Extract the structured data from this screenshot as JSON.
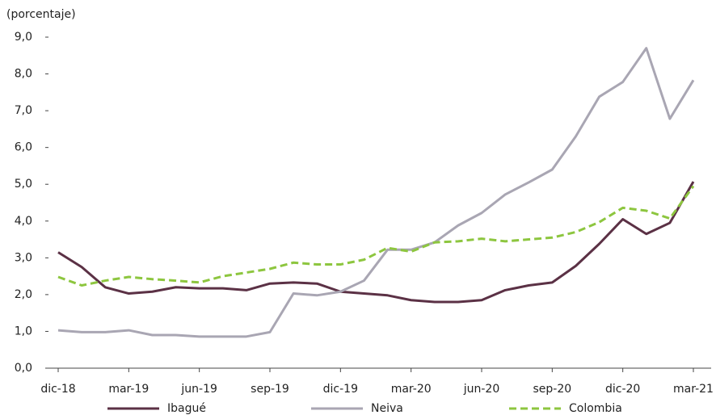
{
  "chart_data": {
    "type": "line",
    "y_axis_label": "(porcentaje)",
    "categories": [
      "dic-18",
      null,
      null,
      "mar-19",
      null,
      null,
      "jun-19",
      null,
      null,
      "sep-19",
      null,
      null,
      "dic-19",
      null,
      null,
      "mar-20",
      null,
      null,
      "jun-20",
      null,
      null,
      "sep-20",
      null,
      null,
      "dic-20",
      null,
      null,
      "mar-21"
    ],
    "series": [
      {
        "name": "Ibagué",
        "color": "#5b3145",
        "dashed": false,
        "values": [
          3.15,
          2.75,
          2.2,
          2.03,
          2.08,
          2.2,
          2.17,
          2.17,
          2.12,
          2.3,
          2.33,
          2.3,
          2.08,
          2.03,
          1.98,
          1.85,
          1.8,
          1.8,
          1.85,
          2.12,
          2.25,
          2.33,
          2.78,
          3.38,
          4.05,
          3.65,
          3.95,
          5.07
        ]
      },
      {
        "name": "Neiva",
        "color": "#a9a6b3",
        "dashed": false,
        "values": [
          1.03,
          0.98,
          0.98,
          1.03,
          0.9,
          0.9,
          0.86,
          0.86,
          0.86,
          0.98,
          2.03,
          1.98,
          2.08,
          2.38,
          3.22,
          3.22,
          3.42,
          3.88,
          4.22,
          4.72,
          5.05,
          5.4,
          6.3,
          7.38,
          7.78,
          8.7,
          6.78,
          7.83
        ]
      },
      {
        "name": "Colombia",
        "color": "#8dc63f",
        "dashed": true,
        "values": [
          2.48,
          2.25,
          2.38,
          2.48,
          2.42,
          2.38,
          2.33,
          2.5,
          2.6,
          2.7,
          2.87,
          2.82,
          2.82,
          2.95,
          3.27,
          3.17,
          3.42,
          3.45,
          3.52,
          3.45,
          3.5,
          3.55,
          3.7,
          3.97,
          4.36,
          4.28,
          4.07,
          4.95
        ]
      }
    ],
    "ylim": [
      0,
      9
    ],
    "yticks": [
      {
        "value": 0,
        "label": "0,0"
      },
      {
        "value": 1,
        "label": "1,0"
      },
      {
        "value": 2,
        "label": "2,0"
      },
      {
        "value": 3,
        "label": "3,0"
      },
      {
        "value": 4,
        "label": "4,0"
      },
      {
        "value": 5,
        "label": "5,0"
      },
      {
        "value": 6,
        "label": "6,0"
      },
      {
        "value": 7,
        "label": "7,0"
      },
      {
        "value": 8,
        "label": "8,0"
      },
      {
        "value": 9,
        "label": "9,0"
      }
    ],
    "grid": false,
    "legend": "bottom"
  }
}
